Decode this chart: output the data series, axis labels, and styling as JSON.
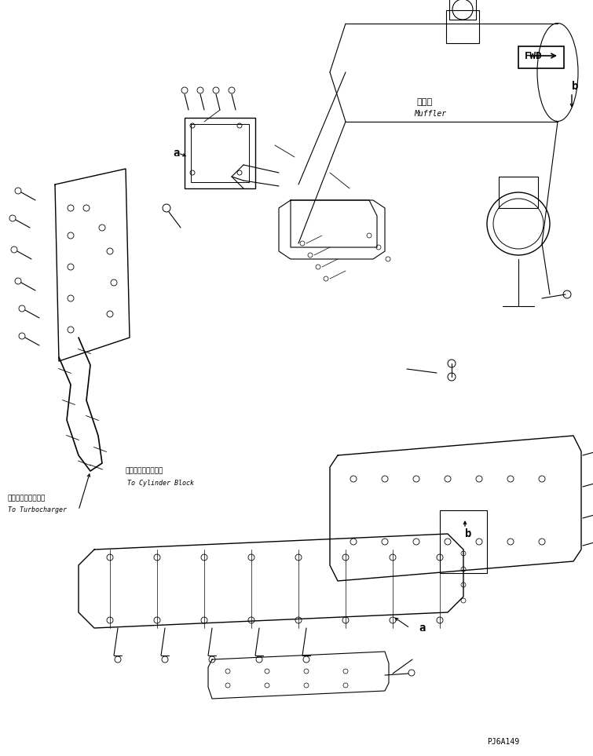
{
  "bg_color": "#ffffff",
  "line_color": "#000000",
  "fig_width": 7.55,
  "fig_height": 9.63,
  "dpi": 100,
  "code_text": "PJ6A149",
  "label_a1": "a",
  "label_b1": "b",
  "label_b2": "b",
  "muffler_jp": "マフラ",
  "muffler_en": "Muffler",
  "to_turbo_jp": "ターボチャージャへ",
  "to_turbo_en": "To Turbocharger",
  "to_cyl_jp": "シリンダブロックへ",
  "to_cyl_en": "To Cylinder Block",
  "fwd_label": "FWD"
}
